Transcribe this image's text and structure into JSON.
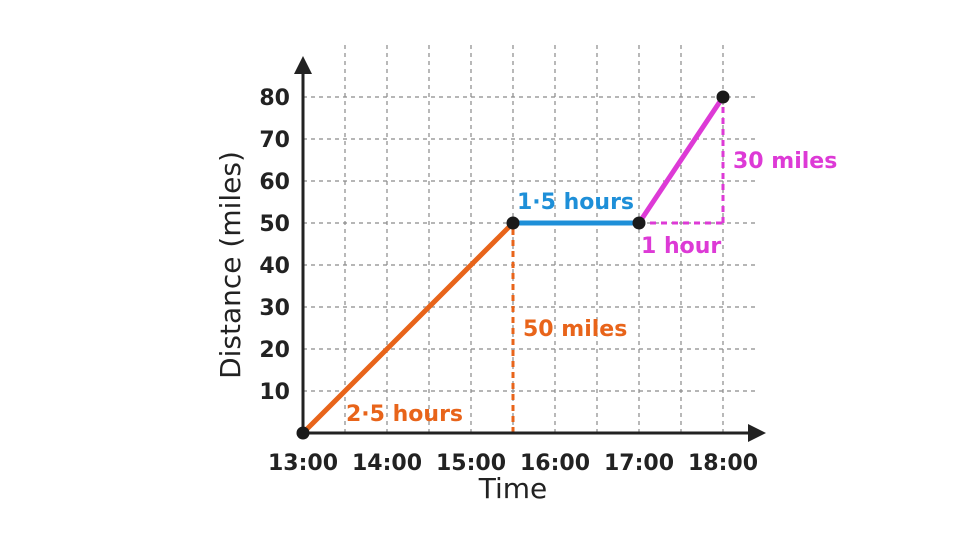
{
  "chart_data": {
    "type": "line",
    "xlabel": "Time",
    "ylabel": "Distance (miles)",
    "xlim": [
      "13:00",
      "18:30"
    ],
    "ylim": [
      0,
      90
    ],
    "x_ticks": [
      "13:00",
      "14:00",
      "15:00",
      "16:00",
      "17:00",
      "18:00"
    ],
    "y_ticks": [
      "10",
      "20",
      "30",
      "40",
      "50",
      "60",
      "70",
      "80"
    ],
    "grid": true,
    "series": [
      {
        "points": [
          [
            "13:00",
            0
          ],
          [
            "15:30",
            50
          ]
        ],
        "color": "#e8641a"
      },
      {
        "points": [
          [
            "15:30",
            50
          ],
          [
            "17:00",
            50
          ]
        ],
        "color": "#1e8fd8"
      },
      {
        "points": [
          [
            "17:00",
            50
          ],
          [
            "18:00",
            80
          ]
        ],
        "color": "#dd3ad6"
      }
    ],
    "annotations": [
      {
        "text": "2·5 hours",
        "color": "#e8641a"
      },
      {
        "text": "50 miles",
        "color": "#e8641a"
      },
      {
        "text": "1·5 hours",
        "color": "#1e8fd8"
      },
      {
        "text": "1 hour",
        "color": "#dd3ad6"
      },
      {
        "text": "30 miles",
        "color": "#dd3ad6"
      }
    ]
  }
}
